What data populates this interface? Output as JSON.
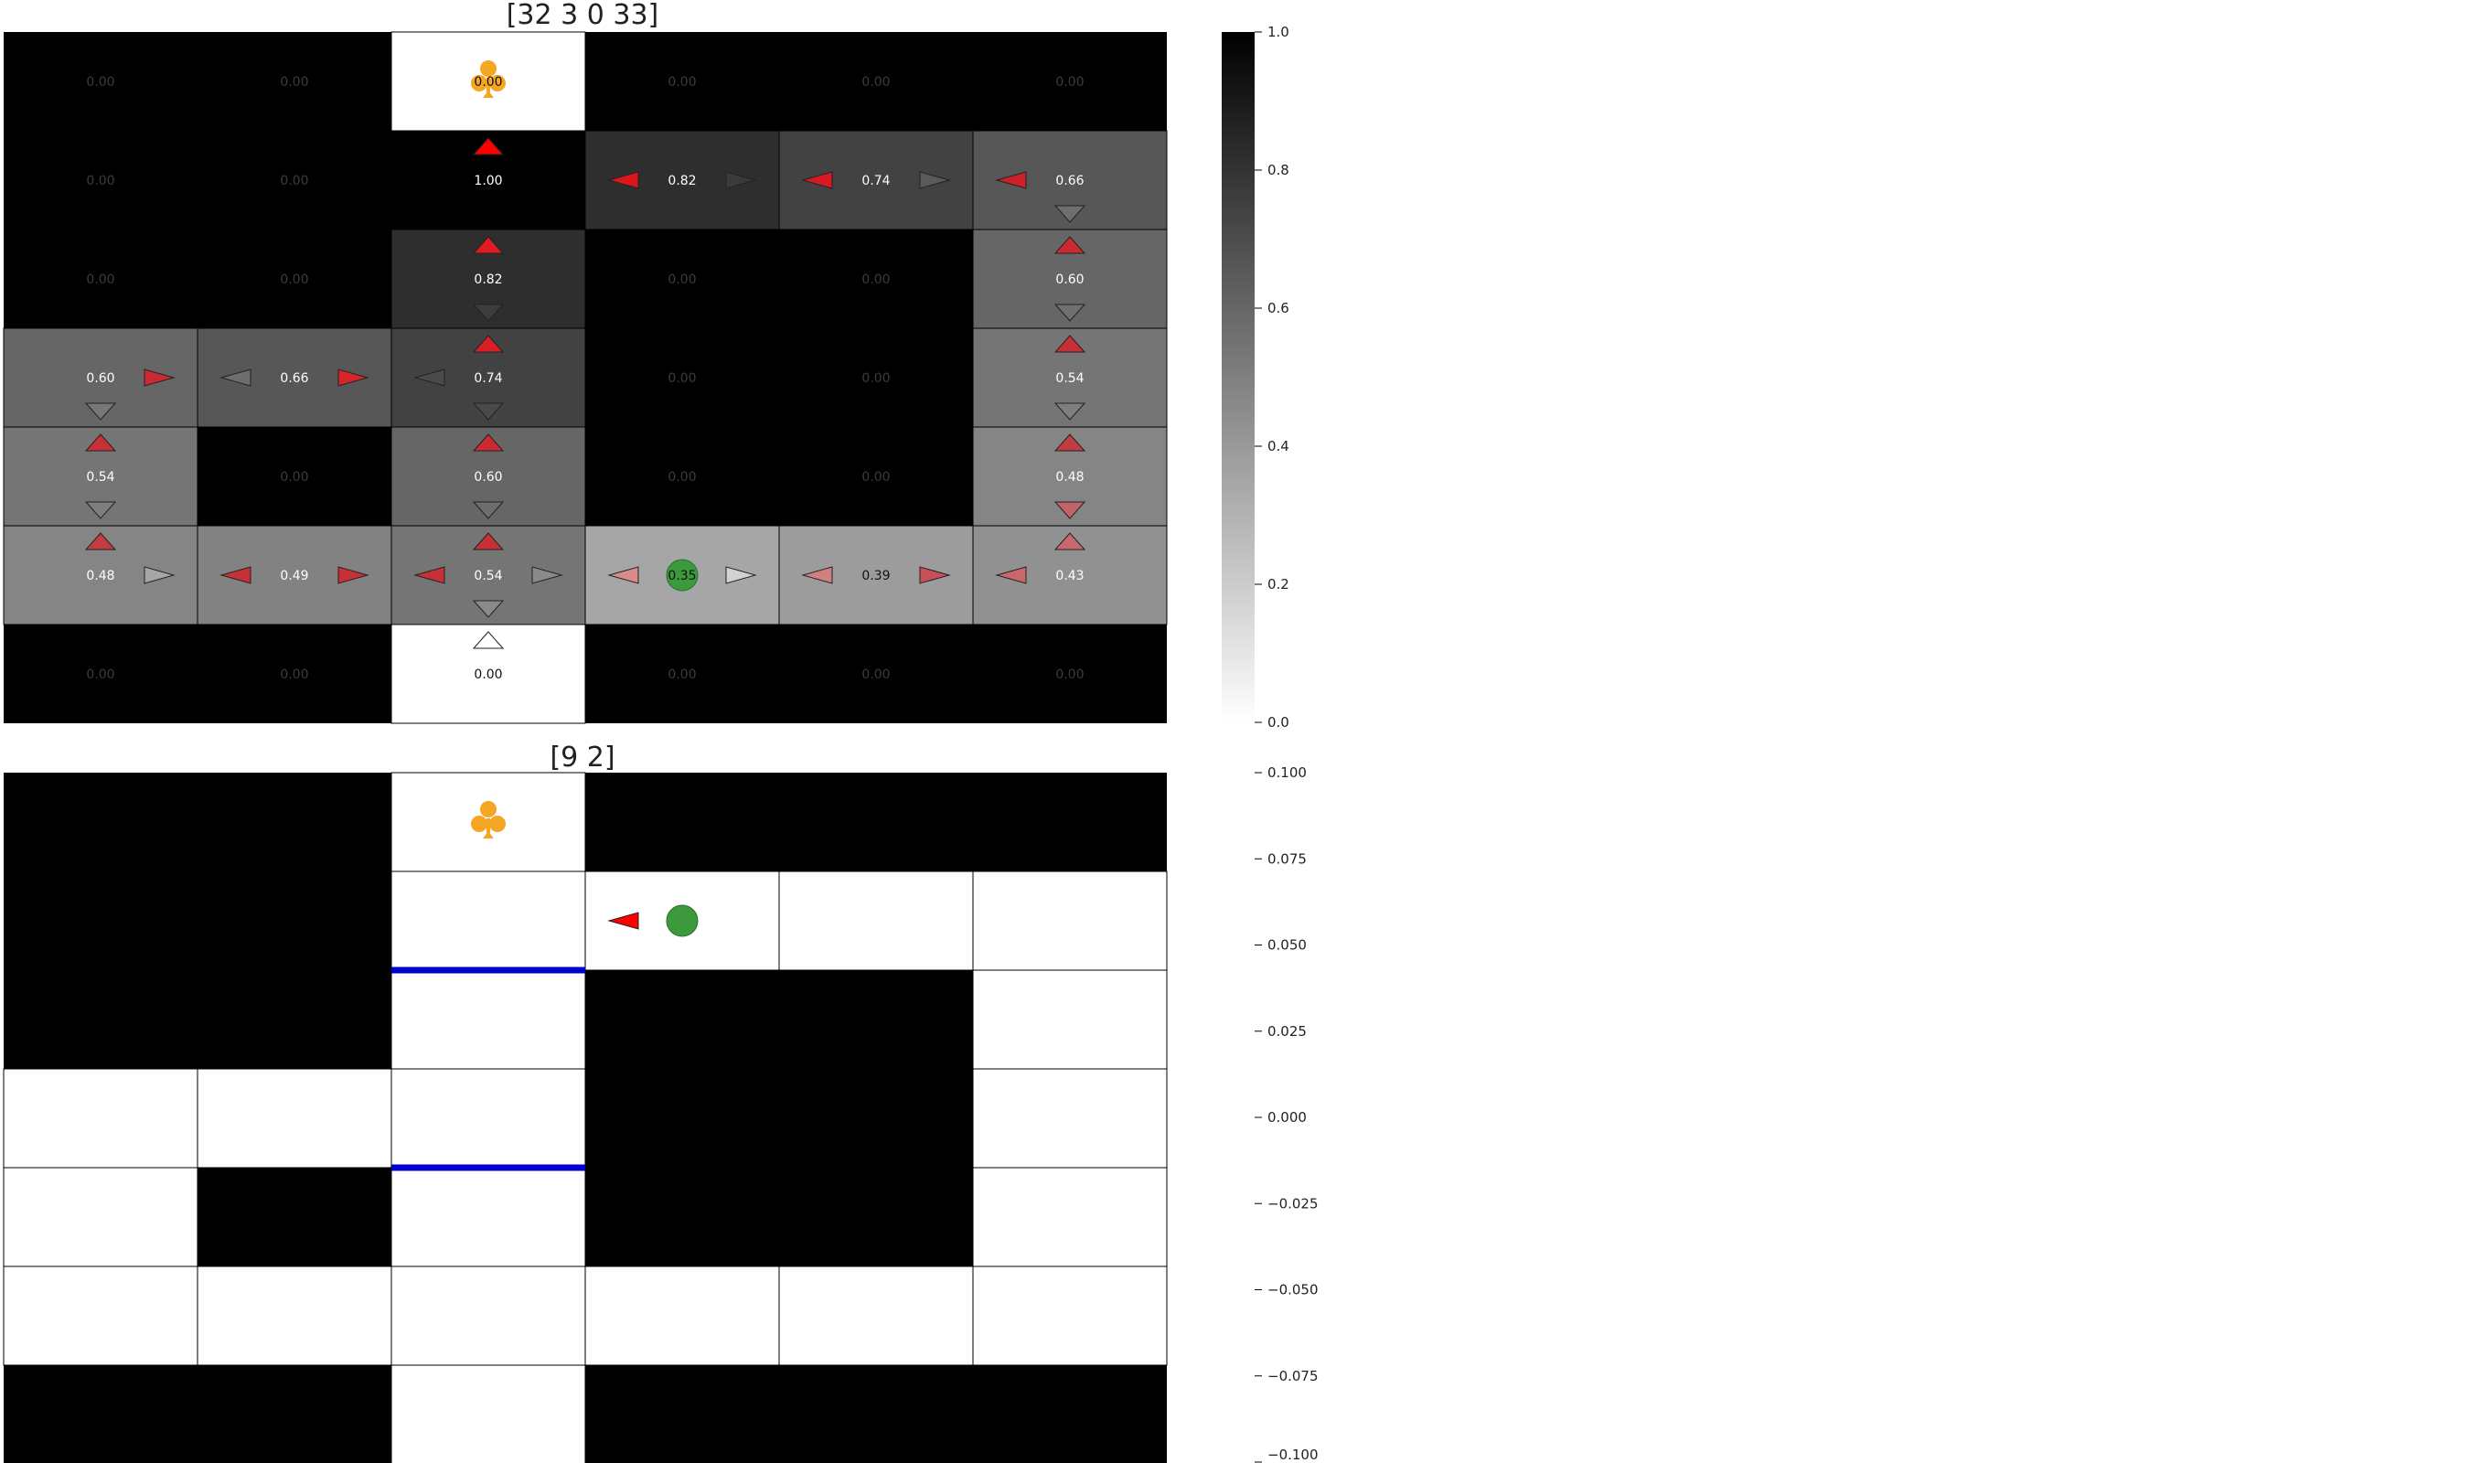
{
  "top_panel": {
    "title": "[32 3 0 33]",
    "values": [
      [
        "0.00",
        "0.00",
        "0.00",
        "0.00",
        "0.00",
        "0.00"
      ],
      [
        "0.00",
        "0.00",
        "1.00",
        "0.82",
        "0.74",
        "0.66"
      ],
      [
        "0.00",
        "0.00",
        "0.82",
        "0.00",
        "0.00",
        "0.60"
      ],
      [
        "0.60",
        "0.66",
        "0.74",
        "0.00",
        "0.00",
        "0.54"
      ],
      [
        "0.54",
        "0.00",
        "0.60",
        "0.00",
        "0.00",
        "0.48"
      ],
      [
        "0.48",
        "0.49",
        "0.54",
        "0.35",
        "0.39",
        "0.43"
      ],
      [
        "0.00",
        "0.00",
        "0.00",
        "0.00",
        "0.00",
        "0.00"
      ]
    ],
    "shade": [
      [
        1.0,
        1.0,
        0.0,
        1.0,
        1.0,
        1.0
      ],
      [
        1.0,
        1.0,
        1.0,
        0.82,
        0.74,
        0.66
      ],
      [
        1.0,
        1.0,
        0.82,
        1.0,
        1.0,
        0.6
      ],
      [
        0.6,
        0.66,
        0.74,
        1.0,
        1.0,
        0.54
      ],
      [
        0.54,
        1.0,
        0.6,
        1.0,
        1.0,
        0.48
      ],
      [
        0.48,
        0.49,
        0.54,
        0.35,
        0.39,
        0.43
      ],
      [
        1.0,
        1.0,
        0.0,
        1.0,
        1.0,
        1.0
      ]
    ],
    "arrows": [
      {
        "row": 1,
        "col": 2,
        "dir": "up",
        "color": "#ff0000"
      },
      {
        "row": 1,
        "col": 3,
        "dir": "left",
        "color": "#e0141b"
      },
      {
        "row": 1,
        "col": 3,
        "dir": "right",
        "color": "#3a3a3a"
      },
      {
        "row": 1,
        "col": 4,
        "dir": "left",
        "color": "#d91a22"
      },
      {
        "row": 1,
        "col": 4,
        "dir": "right",
        "color": "#5a5a5a"
      },
      {
        "row": 1,
        "col": 5,
        "dir": "left",
        "color": "#cc2027"
      },
      {
        "row": 1,
        "col": 5,
        "dir": "down",
        "color": "#6e6e6e"
      },
      {
        "row": 2,
        "col": 2,
        "dir": "up",
        "color": "#e01b22"
      },
      {
        "row": 2,
        "col": 2,
        "dir": "down",
        "color": "#3d3d3d"
      },
      {
        "row": 2,
        "col": 5,
        "dir": "up",
        "color": "#cc2a30"
      },
      {
        "row": 2,
        "col": 5,
        "dir": "down",
        "color": "#707070"
      },
      {
        "row": 3,
        "col": 0,
        "dir": "right",
        "color": "#cc2a30"
      },
      {
        "row": 3,
        "col": 0,
        "dir": "down",
        "color": "#777777"
      },
      {
        "row": 3,
        "col": 1,
        "dir": "left",
        "color": "#6e6e6e"
      },
      {
        "row": 3,
        "col": 1,
        "dir": "right",
        "color": "#d4252b"
      },
      {
        "row": 3,
        "col": 2,
        "dir": "up",
        "color": "#d91e25"
      },
      {
        "row": 3,
        "col": 2,
        "dir": "left",
        "color": "#4a4a4a"
      },
      {
        "row": 3,
        "col": 2,
        "dir": "down",
        "color": "#4a4a4a"
      },
      {
        "row": 3,
        "col": 5,
        "dir": "up",
        "color": "#c73037"
      },
      {
        "row": 3,
        "col": 5,
        "dir": "down",
        "color": "#7e7e7e"
      },
      {
        "row": 4,
        "col": 0,
        "dir": "up",
        "color": "#c73037"
      },
      {
        "row": 4,
        "col": 0,
        "dir": "down",
        "color": "#7e7e7e"
      },
      {
        "row": 4,
        "col": 2,
        "dir": "up",
        "color": "#cc2a30"
      },
      {
        "row": 4,
        "col": 2,
        "dir": "down",
        "color": "#6e6e6e"
      },
      {
        "row": 4,
        "col": 5,
        "dir": "up",
        "color": "#c23c42"
      },
      {
        "row": 4,
        "col": 5,
        "dir": "down",
        "color": "#c06468"
      },
      {
        "row": 5,
        "col": 0,
        "dir": "up",
        "color": "#c23c42"
      },
      {
        "row": 5,
        "col": 0,
        "dir": "right",
        "color": "#a6a6a6"
      },
      {
        "row": 5,
        "col": 1,
        "dir": "left",
        "color": "#c73037"
      },
      {
        "row": 5,
        "col": 1,
        "dir": "right",
        "color": "#c73037"
      },
      {
        "row": 5,
        "col": 2,
        "dir": "up",
        "color": "#c73037"
      },
      {
        "row": 5,
        "col": 2,
        "dir": "left",
        "color": "#c73037"
      },
      {
        "row": 5,
        "col": 2,
        "dir": "right",
        "color": "#8a8a8a"
      },
      {
        "row": 5,
        "col": 2,
        "dir": "down",
        "color": "#8a8a8a"
      },
      {
        "row": 5,
        "col": 3,
        "dir": "left",
        "color": "#d98a8c"
      },
      {
        "row": 5,
        "col": 3,
        "dir": "right",
        "color": "#d2d2d2"
      },
      {
        "row": 5,
        "col": 4,
        "dir": "left",
        "color": "#d08082"
      },
      {
        "row": 5,
        "col": 4,
        "dir": "right",
        "color": "#c85058"
      },
      {
        "row": 5,
        "col": 5,
        "dir": "left",
        "color": "#c8686c"
      },
      {
        "row": 5,
        "col": 5,
        "dir": "up",
        "color": "#c8686c"
      },
      {
        "row": 6,
        "col": 2,
        "dir": "up",
        "color": "#ffffff"
      }
    ],
    "goal_cell": {
      "row": 0,
      "col": 2
    },
    "agent_cell": {
      "row": 5,
      "col": 3
    },
    "colorbar_ticks": [
      "0.0",
      "0.2",
      "0.4",
      "0.6",
      "0.8",
      "1.0"
    ]
  },
  "bottom_panel": {
    "title": "[9 2]",
    "walls": [
      [
        1,
        1,
        0,
        1,
        1,
        1
      ],
      [
        1,
        1,
        0,
        0,
        0,
        0
      ],
      [
        1,
        1,
        0,
        1,
        1,
        0
      ],
      [
        0,
        0,
        0,
        1,
        1,
        0
      ],
      [
        0,
        1,
        0,
        1,
        1,
        0
      ],
      [
        0,
        0,
        0,
        0,
        0,
        0
      ],
      [
        1,
        1,
        0,
        1,
        1,
        1
      ]
    ],
    "blue_edges": [
      {
        "row": 2,
        "col": 2,
        "side": "top"
      },
      {
        "row": 4,
        "col": 2,
        "side": "top"
      }
    ],
    "goal_cell": {
      "row": 0,
      "col": 2
    },
    "agent_cell": {
      "row": 1,
      "col": 3
    },
    "arrow": {
      "row": 1,
      "col": 3,
      "dir": "left",
      "color": "#ff0000"
    },
    "colorbar_ticks": [
      "0.100",
      "0.075",
      "0.050",
      "0.025",
      "0.000",
      "−0.025",
      "−0.050",
      "−0.075",
      "−0.100"
    ]
  },
  "colors": {
    "agent": "#3c9a3c",
    "goal": "#f5a623",
    "blue_edge": "#0000cc",
    "grid_line": "#000000"
  },
  "icons": {
    "goal": "club-icon",
    "agent": "circle-icon"
  }
}
